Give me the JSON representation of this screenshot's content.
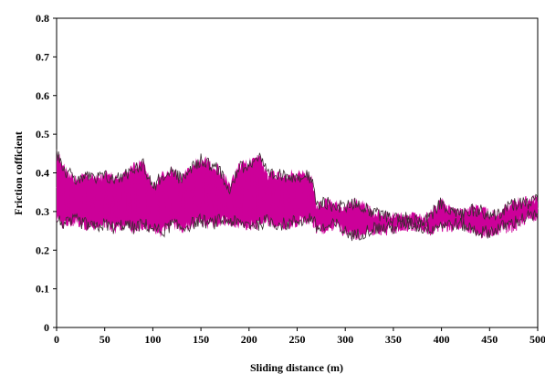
{
  "chart_data": {
    "type": "line",
    "title": "",
    "xlabel": "Sliding distance (m)",
    "ylabel": "Friction  cofficient",
    "xlim": [
      0,
      500
    ],
    "ylim": [
      0,
      0.8
    ],
    "x_ticks": [
      "0",
      "50",
      "100",
      "150",
      "200",
      "250",
      "300",
      "350",
      "400",
      "450",
      "500"
    ],
    "y_ticks": [
      "0",
      "0.1",
      "0.2",
      "0.3",
      "0.4",
      "0.5",
      "0.6",
      "0.7",
      "0.8"
    ],
    "grid": false,
    "legend": "none",
    "series_color": "#cc0099",
    "edge_color": "#3a2a30",
    "series": [
      {
        "x": [
          0,
          10,
          20,
          30,
          40,
          50,
          60,
          70,
          80,
          90,
          100,
          110,
          120,
          130,
          140,
          150,
          160,
          170,
          180,
          190,
          200,
          210,
          220,
          230,
          240,
          250,
          260,
          265,
          270,
          280,
          290,
          300,
          310,
          320,
          330,
          340,
          350,
          360,
          370,
          380,
          390,
          400,
          410,
          420,
          430,
          440,
          450,
          460,
          470,
          480,
          490,
          500
        ],
        "y_max": [
          0.47,
          0.42,
          0.4,
          0.41,
          0.4,
          0.41,
          0.4,
          0.41,
          0.43,
          0.44,
          0.38,
          0.41,
          0.42,
          0.4,
          0.43,
          0.45,
          0.44,
          0.42,
          0.38,
          0.43,
          0.44,
          0.46,
          0.41,
          0.41,
          0.41,
          0.41,
          0.41,
          0.4,
          0.33,
          0.34,
          0.33,
          0.33,
          0.34,
          0.33,
          0.31,
          0.31,
          0.3,
          0.3,
          0.3,
          0.29,
          0.31,
          0.34,
          0.32,
          0.31,
          0.32,
          0.32,
          0.31,
          0.31,
          0.33,
          0.34,
          0.34,
          0.35
        ],
        "y_min": [
          0.26,
          0.25,
          0.26,
          0.25,
          0.24,
          0.25,
          0.24,
          0.25,
          0.24,
          0.25,
          0.24,
          0.23,
          0.25,
          0.24,
          0.25,
          0.26,
          0.25,
          0.26,
          0.26,
          0.25,
          0.25,
          0.25,
          0.26,
          0.25,
          0.25,
          0.26,
          0.26,
          0.27,
          0.24,
          0.24,
          0.25,
          0.23,
          0.22,
          0.23,
          0.24,
          0.24,
          0.24,
          0.25,
          0.25,
          0.24,
          0.24,
          0.25,
          0.25,
          0.25,
          0.24,
          0.23,
          0.23,
          0.24,
          0.25,
          0.26,
          0.27,
          0.27
        ],
        "y_center": [
          0.35,
          0.34,
          0.33,
          0.33,
          0.32,
          0.33,
          0.32,
          0.33,
          0.33,
          0.34,
          0.31,
          0.31,
          0.33,
          0.32,
          0.34,
          0.35,
          0.34,
          0.34,
          0.32,
          0.34,
          0.34,
          0.35,
          0.33,
          0.33,
          0.33,
          0.33,
          0.34,
          0.33,
          0.28,
          0.29,
          0.29,
          0.28,
          0.28,
          0.28,
          0.27,
          0.27,
          0.27,
          0.27,
          0.27,
          0.27,
          0.27,
          0.29,
          0.28,
          0.28,
          0.28,
          0.27,
          0.27,
          0.27,
          0.28,
          0.29,
          0.3,
          0.31
        ]
      }
    ]
  }
}
